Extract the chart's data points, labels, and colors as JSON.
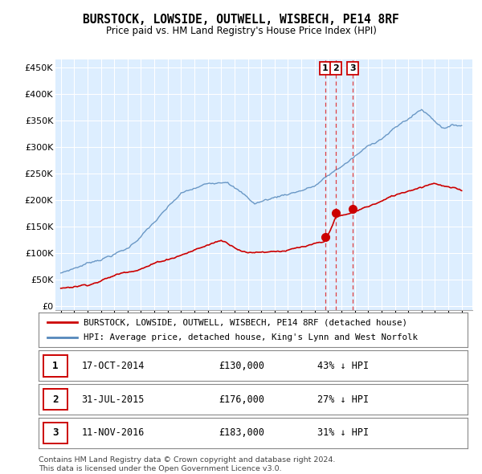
{
  "title": "BURSTOCK, LOWSIDE, OUTWELL, WISBECH, PE14 8RF",
  "subtitle": "Price paid vs. HM Land Registry's House Price Index (HPI)",
  "yticks": [
    0,
    50000,
    100000,
    150000,
    200000,
    250000,
    300000,
    350000,
    400000,
    450000
  ],
  "ylim": [
    -8000,
    465000
  ],
  "xlim": [
    1994.6,
    2025.8
  ],
  "sale_points": [
    {
      "date_num": 2014.79,
      "price": 130000,
      "label": "1",
      "date_str": "17-OCT-2014",
      "price_str": "£130,000",
      "hpi_diff": "43% ↓ HPI"
    },
    {
      "date_num": 2015.58,
      "price": 176000,
      "label": "2",
      "date_str": "31-JUL-2015",
      "price_str": "£176,000",
      "hpi_diff": "27% ↓ HPI"
    },
    {
      "date_num": 2016.86,
      "price": 183000,
      "label": "3",
      "date_str": "11-NOV-2016",
      "price_str": "£183,000",
      "hpi_diff": "31% ↓ HPI"
    }
  ],
  "property_color": "#cc0000",
  "hpi_color": "#5588bb",
  "plot_bg_color": "#ddeeff",
  "legend_property": "BURSTOCK, LOWSIDE, OUTWELL, WISBECH, PE14 8RF (detached house)",
  "legend_hpi": "HPI: Average price, detached house, King's Lynn and West Norfolk",
  "footer1": "Contains HM Land Registry data © Crown copyright and database right 2024.",
  "footer2": "This data is licensed under the Open Government Licence v3.0.",
  "background_color": "#ffffff",
  "grid_color": "#ccccdd"
}
